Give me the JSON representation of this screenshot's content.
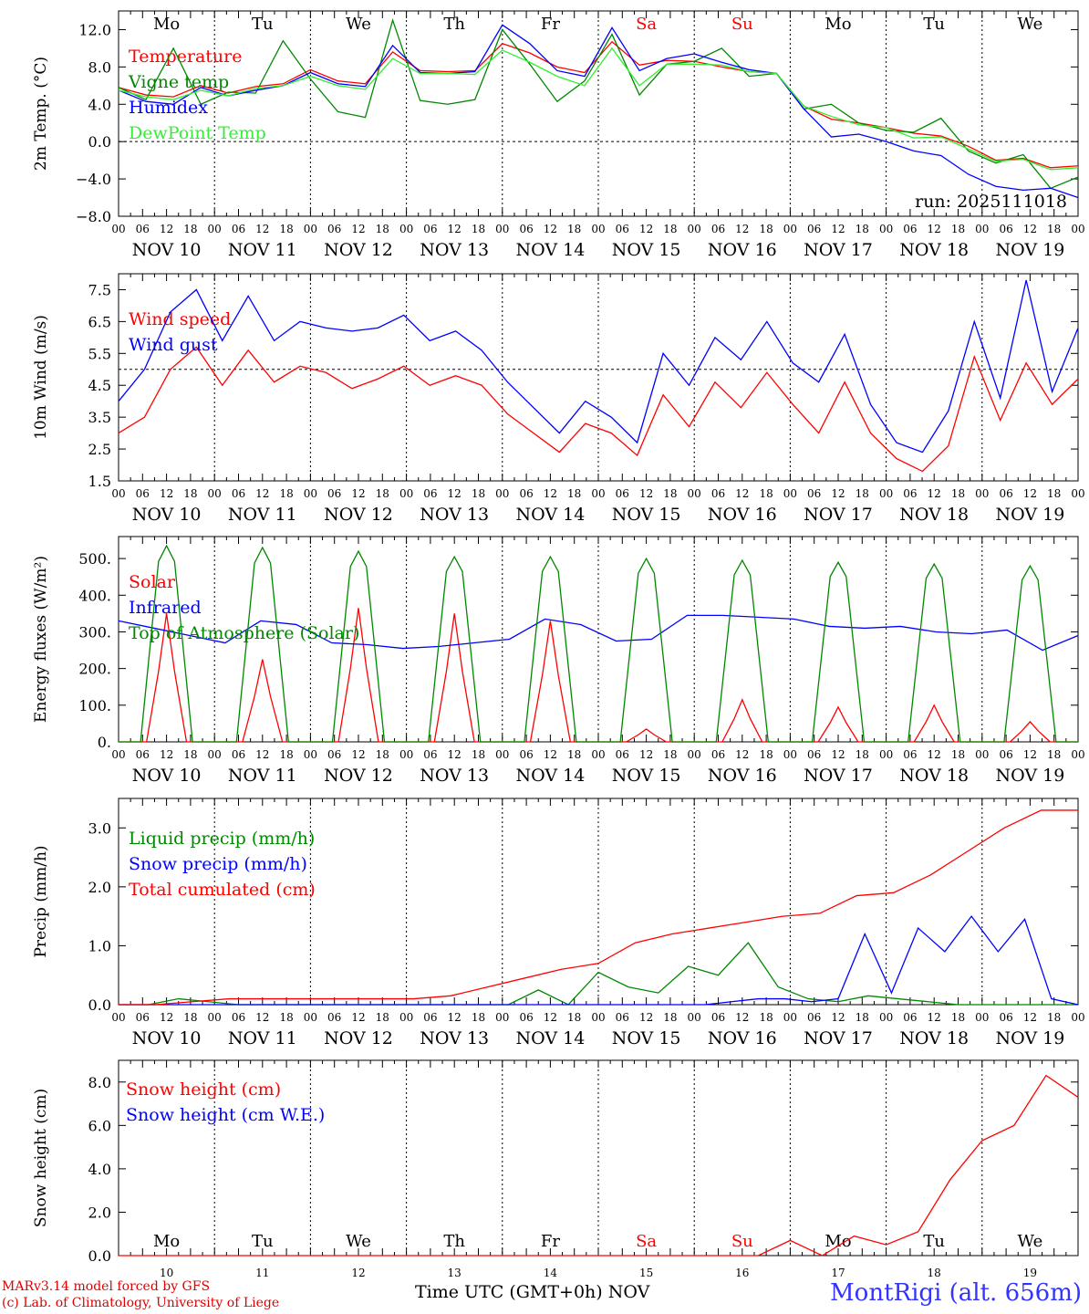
{
  "credits": {
    "line1": "MARv3.14 model forced by GFS",
    "line2": "(c) Lab. of Climatology, University of Liege"
  },
  "station_label": "MontRigi (alt. 656m)",
  "x_axis_title": "Time UTC (GMT+0h)",
  "x_axis_month": "NOV",
  "hour_ticks": [
    "00",
    "06",
    "12",
    "18"
  ],
  "date_labels": [
    "NOV 10",
    "NOV 11",
    "NOV 12",
    "NOV 13",
    "NOV 14",
    "NOV 15",
    "NOV 16",
    "NOV 17",
    "NOV 18",
    "NOV 19"
  ],
  "day_numbers": [
    "10",
    "11",
    "12",
    "13",
    "14",
    "15",
    "16",
    "17",
    "18",
    "19"
  ],
  "weekdays": [
    "Mo",
    "Tu",
    "We",
    "Th",
    "Fr",
    "Sa",
    "Su",
    "Mo",
    "Tu",
    "We"
  ],
  "weekend_days": [
    5,
    6
  ],
  "colors": {
    "red": "#ff0000",
    "green": "#008800",
    "blue": "#0000ff",
    "lightgreen": "#33ee33",
    "grid": "#000000"
  },
  "chart_data": [
    {
      "type": "line",
      "ylabel": "2m Temp. (°C)",
      "ylim": [
        -8,
        14
      ],
      "ticks": [
        "12.0",
        "8.0",
        "4.0",
        "0.0",
        "−4.0",
        "−8.0"
      ],
      "tick_values": [
        12,
        8,
        4,
        0,
        -4,
        -8
      ],
      "ref_line": 0,
      "annotation": "run: 2025111018",
      "x_hours": [
        0,
        6,
        12,
        18,
        24,
        30,
        36,
        42,
        48,
        54,
        60,
        66,
        72,
        78,
        84,
        90,
        96,
        102,
        108,
        114,
        120,
        126,
        132,
        138,
        144,
        150,
        156,
        162,
        168,
        174,
        180,
        186,
        192,
        198,
        204,
        210,
        216,
        222,
        228,
        234,
        240
      ],
      "series": [
        {
          "name": "Temperature",
          "color": "red",
          "values": [
            5.8,
            5.0,
            4.8,
            6.0,
            5.2,
            5.9,
            6.2,
            7.7,
            6.5,
            6.2,
            9.6,
            7.6,
            7.5,
            7.6,
            10.5,
            9.5,
            8.0,
            7.4,
            10.7,
            8.2,
            8.7,
            8.6,
            8.0,
            7.5,
            7.3,
            3.8,
            2.4,
            2.0,
            1.5,
            0.9,
            0.6,
            -0.5,
            -2.0,
            -1.8,
            -2.8,
            -2.6
          ]
        },
        {
          "name": "Vigne temp",
          "color": "green",
          "values": [
            5.8,
            4.5,
            10.0,
            4.0,
            5.3,
            5.2,
            10.8,
            6.7,
            3.2,
            2.6,
            13.0,
            4.4,
            4.0,
            4.5,
            12.0,
            8.3,
            4.3,
            6.5,
            11.5,
            5.0,
            8.3,
            8.6,
            10.0,
            7.0,
            7.3,
            3.5,
            4.0,
            2.0,
            1.2,
            1.0,
            2.5,
            -1.0,
            -2.3,
            -1.4,
            -5.0,
            -3.8
          ]
        },
        {
          "name": "Humidex",
          "color": "blue",
          "values": [
            5.5,
            4.3,
            4.0,
            5.8,
            4.9,
            5.5,
            6.0,
            7.4,
            6.2,
            5.9,
            10.3,
            7.4,
            7.3,
            7.5,
            12.5,
            10.5,
            7.6,
            7.0,
            12.2,
            7.6,
            8.9,
            9.4,
            8.5,
            7.7,
            7.3,
            3.5,
            0.5,
            0.8,
            0.0,
            -1.0,
            -1.5,
            -3.5,
            -4.8,
            -5.2,
            -5.0,
            -6.0
          ]
        },
        {
          "name": "DewPoint Temp",
          "color": "lightgreen",
          "values": [
            5.5,
            4.8,
            4.5,
            5.5,
            4.9,
            5.7,
            6.0,
            7.0,
            6.0,
            5.6,
            8.9,
            7.3,
            7.3,
            7.2,
            9.8,
            8.5,
            7.0,
            6.0,
            10.0,
            6.0,
            8.3,
            8.3,
            8.2,
            7.5,
            7.3,
            3.8,
            2.7,
            1.8,
            1.5,
            0.4,
            0.5,
            -0.8,
            -2.1,
            -1.9,
            -3.0,
            -2.8
          ]
        }
      ]
    },
    {
      "type": "line",
      "ylabel": "10m Wind (m/s)",
      "ylim": [
        1.5,
        8
      ],
      "ticks": [
        "7.5",
        "6.5",
        "5.5",
        "4.5",
        "3.5",
        "2.5",
        "1.5"
      ],
      "tick_values": [
        7.5,
        6.5,
        5.5,
        4.5,
        3.5,
        2.5,
        1.5
      ],
      "ref_line": 5,
      "series": [
        {
          "name": "Wind speed",
          "color": "red",
          "values": [
            3.0,
            3.5,
            5.0,
            5.7,
            4.5,
            5.6,
            4.6,
            5.1,
            4.9,
            4.4,
            4.7,
            5.1,
            4.5,
            4.8,
            4.5,
            3.6,
            3.0,
            2.4,
            3.3,
            3.0,
            2.3,
            4.2,
            3.2,
            4.6,
            3.8,
            4.9,
            3.9,
            3.0,
            4.6,
            3.0,
            2.2,
            1.8,
            2.6,
            5.4,
            3.4,
            5.2,
            3.9,
            4.7
          ]
        },
        {
          "name": "Wind gust",
          "color": "blue",
          "values": [
            4.0,
            5.0,
            6.8,
            7.5,
            5.9,
            7.3,
            5.9,
            6.5,
            6.3,
            6.2,
            6.3,
            6.7,
            5.9,
            6.2,
            5.6,
            4.6,
            3.8,
            3.0,
            4.0,
            3.5,
            2.7,
            5.5,
            4.5,
            6.0,
            5.3,
            6.5,
            5.2,
            4.6,
            6.1,
            3.9,
            2.7,
            2.4,
            3.7,
            6.5,
            4.1,
            7.8,
            4.3,
            6.3
          ]
        }
      ]
    },
    {
      "type": "line",
      "ylabel": "Energy fluxes (W/m²)",
      "ylim": [
        0,
        560
      ],
      "ticks": [
        "500.",
        "400.",
        "300.",
        "200.",
        "100.",
        "0."
      ],
      "tick_values": [
        500,
        400,
        300,
        200,
        100,
        0
      ],
      "series": [
        {
          "name": "Solar",
          "color": "red",
          "peaks": [
            350,
            225,
            365,
            350,
            330,
            35,
            115,
            95,
            100,
            55
          ]
        },
        {
          "name": "Infrared",
          "color": "blue",
          "values": [
            330,
            310,
            290,
            270,
            330,
            320,
            270,
            265,
            255,
            260,
            270,
            280,
            335,
            320,
            275,
            280,
            345,
            345,
            340,
            335,
            315,
            310,
            315,
            300,
            295,
            305,
            250,
            290
          ]
        },
        {
          "name": "Top of Atmosphere (Solar)",
          "color": "green",
          "peaks": [
            535,
            530,
            520,
            505,
            505,
            500,
            495,
            490,
            485,
            480
          ]
        }
      ]
    },
    {
      "type": "line",
      "ylabel": "Precip (mm/h)",
      "ylim": [
        0,
        3.5
      ],
      "ticks": [
        "3.0",
        "2.0",
        "1.0",
        "0.0"
      ],
      "tick_values": [
        3,
        2,
        1,
        0
      ],
      "series": [
        {
          "name": "Liquid precip (mm/h)",
          "color": "green",
          "values": [
            0,
            0,
            0.1,
            0.05,
            0,
            0,
            0,
            0,
            0,
            0,
            0,
            0,
            0,
            0,
            0.25,
            0,
            0.55,
            0.3,
            0.2,
            0.65,
            0.5,
            1.05,
            0.3,
            0.1,
            0.05,
            0.15,
            0.1,
            0.05,
            0,
            0,
            0,
            0,
            0
          ]
        },
        {
          "name": "Snow precip (mm/h)",
          "color": "blue",
          "values": [
            0,
            0,
            0,
            0,
            0,
            0,
            0,
            0,
            0,
            0,
            0,
            0,
            0,
            0,
            0,
            0,
            0,
            0,
            0,
            0,
            0,
            0,
            0,
            0.05,
            0.1,
            0.1,
            0.05,
            0.1,
            1.2,
            0.2,
            1.3,
            0.9,
            1.5,
            0.9,
            1.45,
            0.1,
            0
          ]
        },
        {
          "name": "Total cumulated (cm)",
          "color": "red",
          "values": [
            0,
            0,
            0.05,
            0.1,
            0.1,
            0.1,
            0.1,
            0.1,
            0.1,
            0.15,
            0.3,
            0.45,
            0.6,
            0.7,
            1.05,
            1.2,
            1.3,
            1.4,
            1.5,
            1.55,
            1.85,
            1.9,
            2.2,
            2.6,
            3.0,
            3.3,
            3.3
          ]
        }
      ]
    },
    {
      "type": "line",
      "ylabel": "Snow height (cm)",
      "ylim": [
        0,
        9
      ],
      "ticks": [
        "8.0",
        "6.0",
        "4.0",
        "2.0",
        "0.0"
      ],
      "tick_values": [
        8,
        6,
        4,
        2,
        0
      ],
      "series": [
        {
          "name": "Snow height (cm)",
          "color": "red",
          "values": [
            0,
            0,
            0,
            0,
            0,
            0,
            0,
            0,
            0,
            0,
            0,
            0,
            0,
            0,
            0,
            0,
            0,
            0,
            0,
            0,
            0,
            0.7,
            0,
            0.9,
            0.5,
            1.1,
            3.5,
            5.3,
            6.0,
            8.3,
            7.3
          ]
        },
        {
          "name": "Snow height (cm W.E.)",
          "color": "blue",
          "values": []
        }
      ]
    }
  ]
}
